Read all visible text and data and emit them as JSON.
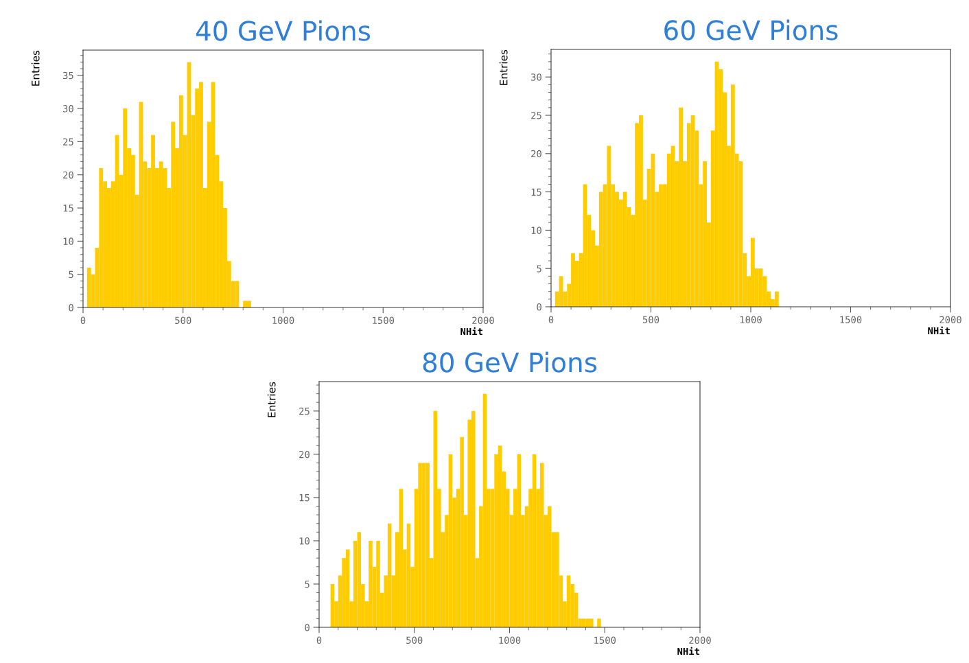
{
  "chart_data": [
    {
      "type": "histogram",
      "title": "40 GeV Pions",
      "xlabel": "NHit",
      "ylabel": "Entries",
      "color": "#ffcc00",
      "bins": [
        0,
        20,
        40,
        60,
        80,
        100,
        120,
        140,
        160,
        180,
        200,
        220,
        240,
        260,
        280,
        300,
        320,
        340,
        360,
        380,
        400,
        420,
        440,
        460,
        480,
        500,
        520,
        540,
        560,
        580,
        600,
        620,
        640,
        660,
        680,
        700,
        720,
        740,
        760,
        780,
        800,
        820,
        840
      ],
      "values": [
        0,
        6,
        5,
        9,
        21,
        19,
        18,
        19,
        26,
        20,
        30,
        24,
        23,
        17,
        31,
        22,
        21,
        26,
        21,
        22,
        21,
        18,
        28,
        24,
        32,
        26,
        37,
        29,
        33,
        34,
        18,
        28,
        34,
        23,
        19,
        15,
        7,
        4,
        4,
        0,
        1,
        1
      ],
      "xlim": [
        0,
        2000
      ],
      "xticks": [
        0,
        500,
        1000,
        1500,
        2000
      ],
      "ylim": [
        0,
        38.8
      ],
      "yticks": [
        0,
        5,
        10,
        15,
        20,
        25,
        30,
        35
      ],
      "grid": false,
      "legend": false
    },
    {
      "type": "histogram",
      "title": "60 GeV Pions",
      "xlabel": "NHit",
      "ylabel": "Entries",
      "color": "#ffcc00",
      "bins": [
        0,
        20,
        40,
        60,
        80,
        100,
        120,
        140,
        160,
        180,
        200,
        220,
        240,
        260,
        280,
        300,
        320,
        340,
        360,
        380,
        400,
        420,
        440,
        460,
        480,
        500,
        520,
        540,
        560,
        580,
        600,
        620,
        640,
        660,
        680,
        700,
        720,
        740,
        760,
        780,
        800,
        820,
        840,
        860,
        880,
        900,
        920,
        940,
        960,
        980,
        1000,
        1020,
        1040,
        1060,
        1080,
        1100,
        1120,
        1140
      ],
      "values": [
        0,
        2,
        4,
        2,
        3,
        7,
        6,
        7,
        16,
        12,
        10,
        8,
        15,
        16,
        21,
        16,
        15,
        14,
        15,
        13,
        12,
        24,
        25,
        14,
        18,
        20,
        15,
        16,
        16,
        20,
        21,
        19,
        26,
        19,
        24,
        25,
        23,
        16,
        19,
        11,
        23,
        32,
        31,
        28,
        21,
        29,
        20,
        19,
        7,
        4,
        9,
        5,
        5,
        4,
        2,
        1,
        2
      ],
      "xlim": [
        0,
        2000
      ],
      "xticks": [
        0,
        500,
        1000,
        1500,
        2000
      ],
      "ylim": [
        0,
        33.6
      ],
      "yticks": [
        0,
        5,
        10,
        15,
        20,
        25,
        30
      ],
      "grid": false,
      "legend": false
    },
    {
      "type": "histogram",
      "title": "80 GeV Pions",
      "xlabel": "NHit",
      "ylabel": "Entries",
      "color": "#ffcc00",
      "bins": [
        0,
        20,
        40,
        60,
        80,
        100,
        120,
        140,
        160,
        180,
        200,
        220,
        240,
        260,
        280,
        300,
        320,
        340,
        360,
        380,
        400,
        420,
        440,
        460,
        480,
        500,
        520,
        540,
        560,
        580,
        600,
        620,
        640,
        660,
        680,
        700,
        720,
        740,
        760,
        780,
        800,
        820,
        840,
        860,
        880,
        900,
        920,
        940,
        960,
        980,
        1000,
        1020,
        1040,
        1060,
        1080,
        1100,
        1120,
        1140,
        1160,
        1180,
        1200,
        1220,
        1240,
        1260,
        1280,
        1300,
        1320,
        1340,
        1360,
        1380,
        1400,
        1420,
        1440,
        1460,
        1480
      ],
      "values": [
        0,
        0,
        0,
        5,
        3,
        6,
        8,
        9,
        3,
        10,
        11,
        5,
        3,
        10,
        7,
        10,
        4,
        6,
        12,
        6,
        11,
        16,
        9,
        12,
        7,
        16,
        19,
        19,
        19,
        8,
        25,
        16,
        11,
        13,
        20,
        15,
        16,
        22,
        13,
        24,
        25,
        8,
        14,
        27,
        16,
        16,
        20,
        21,
        18,
        16,
        13,
        16,
        20,
        13,
        14,
        16,
        20,
        16,
        19,
        13,
        14,
        11,
        11,
        6,
        3,
        6,
        5,
        4,
        1,
        1,
        1,
        1,
        0,
        1
      ],
      "xlim": [
        0,
        2000
      ],
      "xticks": [
        0,
        500,
        1000,
        1500,
        2000
      ],
      "ylim": [
        0,
        28.4
      ],
      "yticks": [
        0,
        5,
        10,
        15,
        20,
        25
      ],
      "grid": false,
      "legend": false
    }
  ]
}
